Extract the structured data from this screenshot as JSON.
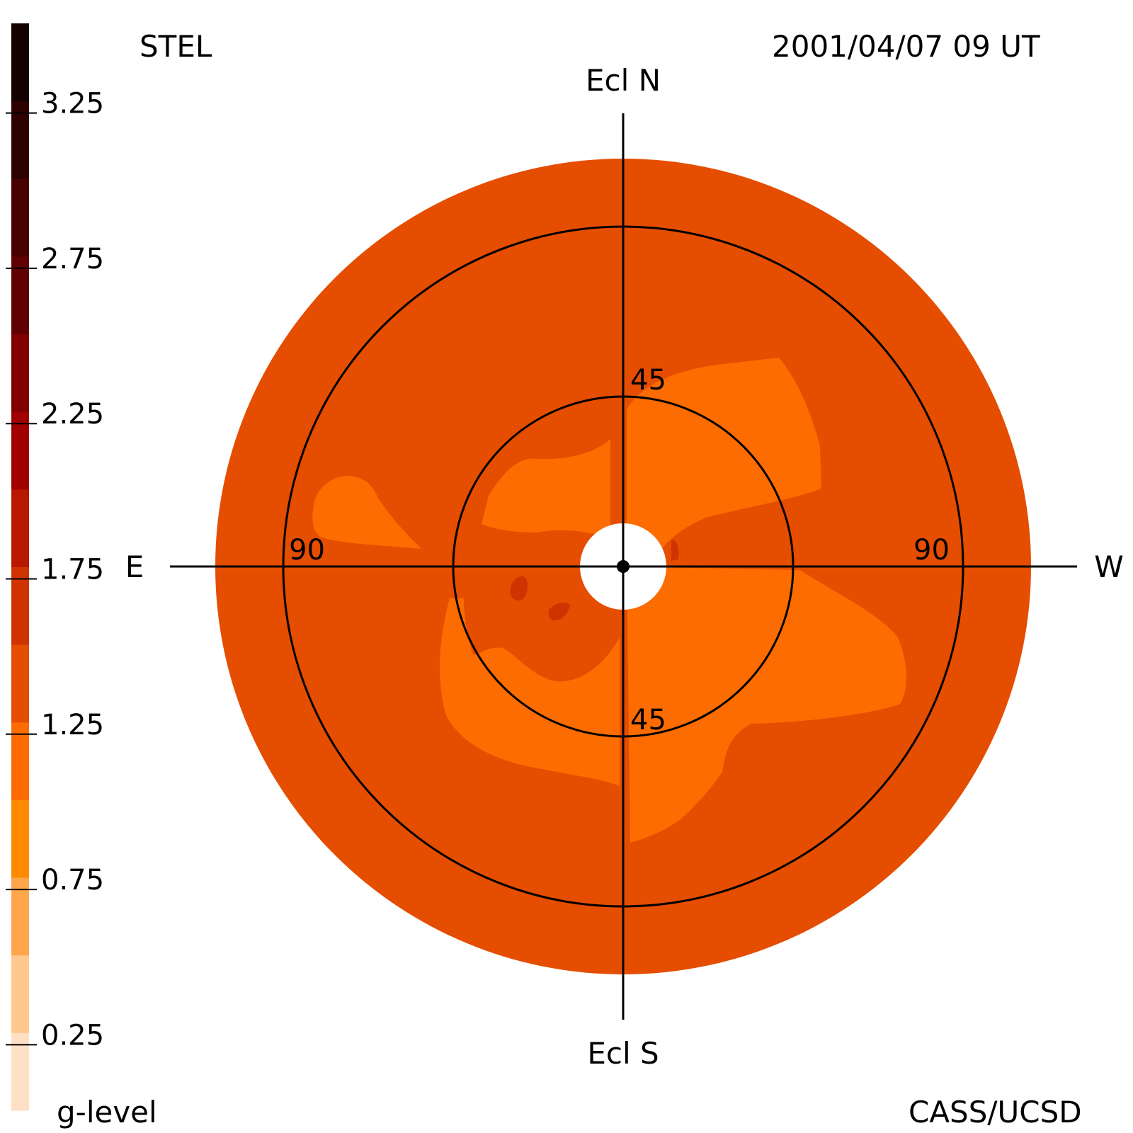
{
  "header": {
    "left_label": "STEL",
    "right_label": "2001/04/07 09 UT"
  },
  "footer": {
    "left_label": "g-level",
    "right_label": "CASS/UCSD"
  },
  "chart_data": {
    "type": "heatmap",
    "projection": "polar sky map (fisheye)",
    "directions": {
      "north": "Ecl N",
      "south": "Ecl S",
      "east": "E",
      "west": "W"
    },
    "ring_labels": {
      "inner_north": "45",
      "inner_south": "45",
      "outer_east": "90",
      "outer_west": "90"
    },
    "ring_elongations_deg": [
      45,
      90
    ],
    "map_outer_elongation_deg": 110,
    "colorbar": {
      "label": "g-level",
      "range": [
        0.0,
        3.5
      ],
      "tick_labels": [
        "3.25",
        "2.75",
        "2.25",
        "1.75",
        "1.25",
        "0.75",
        "0.25"
      ],
      "levels": [
        {
          "from": 0.0,
          "to": 0.25,
          "color": "#ffe0c4"
        },
        {
          "from": 0.25,
          "to": 0.5,
          "color": "#ffc88e"
        },
        {
          "from": 0.5,
          "to": 0.75,
          "color": "#ffa64c"
        },
        {
          "from": 0.75,
          "to": 1.0,
          "color": "#ff8a00"
        },
        {
          "from": 1.0,
          "to": 1.25,
          "color": "#fd6c00"
        },
        {
          "from": 1.25,
          "to": 1.5,
          "color": "#e54d00"
        },
        {
          "from": 1.5,
          "to": 1.75,
          "color": "#cf3400"
        },
        {
          "from": 1.75,
          "to": 2.0,
          "color": "#b81800"
        },
        {
          "from": 2.0,
          "to": 2.25,
          "color": "#a00000"
        },
        {
          "from": 2.25,
          "to": 2.5,
          "color": "#800000"
        },
        {
          "from": 2.5,
          "to": 2.75,
          "color": "#600000"
        },
        {
          "from": 2.75,
          "to": 3.0,
          "color": "#480000"
        },
        {
          "from": 3.0,
          "to": 3.25,
          "color": "#2e0000"
        },
        {
          "from": 3.25,
          "to": 3.5,
          "color": "#150000"
        }
      ]
    },
    "background_level": 1.25,
    "regions": [
      {
        "name": "northwest-lobe",
        "level": 1.0
      },
      {
        "name": "southwest-lobe",
        "level": 1.0
      },
      {
        "name": "south-lobe",
        "level": 1.0
      },
      {
        "name": "east-north-lobe",
        "level": 1.0
      },
      {
        "name": "east-small-lobe",
        "level": 1.0
      },
      {
        "name": "enhanced-spot-1",
        "level": 1.5
      },
      {
        "name": "enhanced-spot-2",
        "level": 1.5
      }
    ],
    "colors": {
      "background_map": "#e54d00",
      "lobe": "#fd6c00",
      "enhanced": "#cf3400",
      "sun_occulter": "#ffffff",
      "grid_lines": "#000000"
    }
  }
}
